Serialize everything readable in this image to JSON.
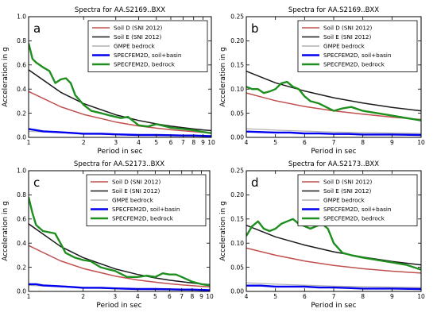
{
  "figure": {
    "colors": {
      "soil_d": "#c0504d",
      "soil_e": "#1a1a1a",
      "gmpe": "#b0b0b0",
      "soil_basin": "#0000ee",
      "bedrock": "#1e8f1e"
    }
  },
  "chart_data": [
    {
      "type": "line",
      "panel_letter": "a",
      "title": "Spectra for AA.S2169..BXX",
      "xlabel": "Period in sec",
      "ylabel": "Acceleration in g",
      "xscale": "log",
      "xlim": [
        1,
        10
      ],
      "ylim": [
        0,
        1.0
      ],
      "xticks": [
        1,
        2,
        3,
        4,
        5,
        6,
        7,
        8,
        9,
        10
      ],
      "xtick_labels": [
        "1",
        "2",
        "3",
        "4",
        "5",
        "6",
        "7",
        "8",
        "9",
        "10"
      ],
      "yticks": [
        0,
        0.2,
        0.4,
        0.6,
        0.8,
        1.0
      ],
      "ytick_labels": [
        "0.0",
        "0.2",
        "0.4",
        "0.6",
        "0.8",
        "1.0"
      ],
      "grid": false,
      "legend_position": "top-right",
      "series": [
        {
          "name": "Soil D (SNI 2012)",
          "color_key": "soil_d",
          "x": [
            1,
            1.5,
            2,
            3,
            4,
            5,
            6,
            7,
            8,
            9,
            10
          ],
          "y": [
            0.38,
            0.253,
            0.19,
            0.127,
            0.095,
            0.076,
            0.063,
            0.054,
            0.048,
            0.042,
            0.038
          ]
        },
        {
          "name": "Soil E (SNI 2012)",
          "color_key": "soil_e",
          "x": [
            1,
            1.5,
            2,
            3,
            4,
            5,
            6,
            7,
            8,
            9,
            10
          ],
          "y": [
            0.56,
            0.373,
            0.28,
            0.187,
            0.14,
            0.112,
            0.093,
            0.08,
            0.07,
            0.062,
            0.056
          ]
        },
        {
          "name": "GMPE bedrock",
          "color_key": "gmpe",
          "x": [
            1,
            1.5,
            2,
            3,
            4,
            5,
            6,
            7,
            8,
            9,
            10
          ],
          "y": [
            0.05,
            0.038,
            0.03,
            0.022,
            0.018,
            0.015,
            0.013,
            0.011,
            0.01,
            0.009,
            0.008
          ]
        },
        {
          "name": "SPECFEM2D, soil+basin",
          "color_key": "soil_basin",
          "x": [
            1,
            1.1,
            1.2,
            1.4,
            1.6,
            1.8,
            2,
            2.5,
            3,
            4,
            5,
            6,
            7,
            8,
            10
          ],
          "y": [
            0.07,
            0.06,
            0.05,
            0.045,
            0.04,
            0.035,
            0.03,
            0.03,
            0.025,
            0.02,
            0.02,
            0.018,
            0.015,
            0.015,
            0.01
          ]
        },
        {
          "name": "SPECFEM2D, bedrock",
          "color_key": "bedrock",
          "x": [
            1,
            1.05,
            1.1,
            1.2,
            1.3,
            1.4,
            1.5,
            1.6,
            1.7,
            1.8,
            2,
            2.2,
            2.5,
            2.8,
            3,
            3.2,
            3.5,
            4,
            4.5,
            5,
            5.5,
            6,
            7,
            8,
            9,
            10
          ],
          "y": [
            0.78,
            0.65,
            0.62,
            0.58,
            0.55,
            0.45,
            0.48,
            0.49,
            0.45,
            0.35,
            0.27,
            0.22,
            0.2,
            0.18,
            0.17,
            0.16,
            0.17,
            0.1,
            0.09,
            0.11,
            0.095,
            0.08,
            0.07,
            0.06,
            0.045,
            0.035
          ]
        }
      ]
    },
    {
      "type": "line",
      "panel_letter": "b",
      "title": "Spectra for AA.S2169..BXX",
      "xlabel": "Period in sec",
      "ylabel": "Acceleration in g",
      "xscale": "linear",
      "xlim": [
        4,
        10
      ],
      "ylim": [
        0,
        0.25
      ],
      "xticks": [
        4,
        5,
        6,
        7,
        8,
        9,
        10
      ],
      "xtick_labels": [
        "4",
        "5",
        "6",
        "7",
        "8",
        "9",
        "10"
      ],
      "yticks": [
        0,
        0.05,
        0.1,
        0.15,
        0.2,
        0.25
      ],
      "ytick_labels": [
        "0.00",
        "0.05",
        "0.10",
        "0.15",
        "0.20",
        "0.25"
      ],
      "grid": false,
      "legend_position": "top-right",
      "series": [
        {
          "name": "Soil D (SNI 2012)",
          "color_key": "soil_d",
          "x": [
            4,
            5,
            6,
            7,
            8,
            9,
            10
          ],
          "y": [
            0.092,
            0.076,
            0.064,
            0.055,
            0.048,
            0.042,
            0.037
          ]
        },
        {
          "name": "Soil E (SNI 2012)",
          "color_key": "soil_e",
          "x": [
            4,
            5,
            6,
            7,
            8,
            9,
            10
          ],
          "y": [
            0.137,
            0.113,
            0.096,
            0.082,
            0.071,
            0.062,
            0.055
          ]
        },
        {
          "name": "GMPE bedrock",
          "color_key": "gmpe",
          "x": [
            4,
            5,
            6,
            7,
            8,
            9,
            10
          ],
          "y": [
            0.018,
            0.015,
            0.013,
            0.011,
            0.01,
            0.009,
            0.008
          ]
        },
        {
          "name": "SPECFEM2D, soil+basin",
          "color_key": "soil_basin",
          "x": [
            4,
            4.5,
            5,
            5.5,
            6,
            6.5,
            7,
            7.5,
            8,
            9,
            10
          ],
          "y": [
            0.012,
            0.011,
            0.01,
            0.01,
            0.008,
            0.008,
            0.007,
            0.007,
            0.006,
            0.006,
            0.005
          ]
        },
        {
          "name": "SPECFEM2D, bedrock",
          "color_key": "bedrock",
          "x": [
            4,
            4.2,
            4.4,
            4.6,
            4.8,
            5,
            5.2,
            5.4,
            5.6,
            5.8,
            6,
            6.2,
            6.5,
            7,
            7.3,
            7.6,
            8,
            8.5,
            9,
            9.5,
            10
          ],
          "y": [
            0.105,
            0.1,
            0.1,
            0.092,
            0.095,
            0.1,
            0.112,
            0.115,
            0.105,
            0.1,
            0.085,
            0.075,
            0.07,
            0.055,
            0.06,
            0.063,
            0.055,
            0.05,
            0.045,
            0.04,
            0.035
          ]
        }
      ]
    },
    {
      "type": "line",
      "panel_letter": "c",
      "title": "Spectra for AA.S2173..BXX",
      "xlabel": "Period in sec",
      "ylabel": "Acceleration in g",
      "xscale": "log",
      "xlim": [
        1,
        10
      ],
      "ylim": [
        0,
        1.0
      ],
      "xticks": [
        1,
        2,
        3,
        4,
        5,
        6,
        7,
        8,
        9,
        10
      ],
      "xtick_labels": [
        "1",
        "2",
        "3",
        "4",
        "5",
        "6",
        "7",
        "8",
        "9",
        "10"
      ],
      "yticks": [
        0,
        0.2,
        0.4,
        0.6,
        0.8,
        1.0
      ],
      "ytick_labels": [
        "0.0",
        "0.2",
        "0.4",
        "0.6",
        "0.8",
        "1.0"
      ],
      "grid": false,
      "legend_position": "top-right",
      "series": [
        {
          "name": "Soil D (SNI 2012)",
          "color_key": "soil_d",
          "x": [
            1,
            1.5,
            2,
            3,
            4,
            5,
            6,
            7,
            8,
            9,
            10
          ],
          "y": [
            0.38,
            0.253,
            0.19,
            0.127,
            0.095,
            0.076,
            0.063,
            0.054,
            0.048,
            0.042,
            0.038
          ]
        },
        {
          "name": "Soil E (SNI 2012)",
          "color_key": "soil_e",
          "x": [
            1,
            1.5,
            2,
            3,
            4,
            5,
            6,
            7,
            8,
            9,
            10
          ],
          "y": [
            0.56,
            0.373,
            0.28,
            0.187,
            0.14,
            0.112,
            0.093,
            0.08,
            0.07,
            0.062,
            0.056
          ]
        },
        {
          "name": "GMPE bedrock",
          "color_key": "gmpe",
          "x": [
            1,
            1.5,
            2,
            3,
            4,
            5,
            6,
            7,
            8,
            9,
            10
          ],
          "y": [
            0.05,
            0.038,
            0.03,
            0.022,
            0.018,
            0.015,
            0.013,
            0.011,
            0.01,
            0.009,
            0.008
          ]
        },
        {
          "name": "SPECFEM2D, soil+basin",
          "color_key": "soil_basin",
          "x": [
            1,
            1.1,
            1.2,
            1.4,
            1.6,
            1.8,
            2,
            2.5,
            3,
            4,
            5,
            6,
            7,
            8,
            10
          ],
          "y": [
            0.06,
            0.06,
            0.05,
            0.045,
            0.04,
            0.035,
            0.03,
            0.03,
            0.025,
            0.02,
            0.02,
            0.018,
            0.015,
            0.015,
            0.01
          ]
        },
        {
          "name": "SPECFEM2D, bedrock",
          "color_key": "bedrock",
          "x": [
            1,
            1.05,
            1.1,
            1.2,
            1.3,
            1.4,
            1.5,
            1.6,
            1.8,
            2,
            2.2,
            2.5,
            2.8,
            3,
            3.5,
            4,
            4.5,
            5,
            5.5,
            6,
            6.5,
            7,
            8,
            9,
            10
          ],
          "y": [
            0.78,
            0.65,
            0.55,
            0.5,
            0.49,
            0.48,
            0.4,
            0.32,
            0.28,
            0.26,
            0.25,
            0.2,
            0.18,
            0.17,
            0.12,
            0.12,
            0.13,
            0.12,
            0.15,
            0.14,
            0.14,
            0.12,
            0.08,
            0.06,
            0.05
          ]
        }
      ]
    },
    {
      "type": "line",
      "panel_letter": "d",
      "title": "Spectra for AA.S2173..BXX",
      "xlabel": "Period in sec",
      "ylabel": "Acceleration in g",
      "xscale": "linear",
      "xlim": [
        4,
        10
      ],
      "ylim": [
        0,
        0.25
      ],
      "xticks": [
        4,
        5,
        6,
        7,
        8,
        9,
        10
      ],
      "xtick_labels": [
        "4",
        "5",
        "6",
        "7",
        "8",
        "9",
        "10"
      ],
      "yticks": [
        0,
        0.05,
        0.1,
        0.15,
        0.2,
        0.25
      ],
      "ytick_labels": [
        "0.00",
        "0.05",
        "0.10",
        "0.15",
        "0.20",
        "0.25"
      ],
      "grid": false,
      "legend_position": "top-right",
      "series": [
        {
          "name": "Soil D (SNI 2012)",
          "color_key": "soil_d",
          "x": [
            4,
            5,
            6,
            7,
            8,
            9,
            10
          ],
          "y": [
            0.09,
            0.075,
            0.063,
            0.054,
            0.047,
            0.042,
            0.038
          ]
        },
        {
          "name": "Soil E (SNI 2012)",
          "color_key": "soil_e",
          "x": [
            4,
            5,
            6,
            7,
            8,
            9,
            10
          ],
          "y": [
            0.137,
            0.113,
            0.096,
            0.082,
            0.071,
            0.062,
            0.055
          ]
        },
        {
          "name": "GMPE bedrock",
          "color_key": "gmpe",
          "x": [
            4,
            5,
            6,
            7,
            8,
            9,
            10
          ],
          "y": [
            0.018,
            0.015,
            0.013,
            0.011,
            0.01,
            0.009,
            0.008
          ]
        },
        {
          "name": "SPECFEM2D, soil+basin",
          "color_key": "soil_basin",
          "x": [
            4,
            4.5,
            5,
            5.5,
            6,
            6.5,
            7,
            7.5,
            8,
            9,
            10
          ],
          "y": [
            0.012,
            0.012,
            0.01,
            0.01,
            0.01,
            0.008,
            0.008,
            0.007,
            0.006,
            0.006,
            0.005
          ]
        },
        {
          "name": "SPECFEM2D, bedrock",
          "color_key": "bedrock",
          "x": [
            4,
            4.2,
            4.4,
            4.6,
            4.8,
            5,
            5.2,
            5.4,
            5.6,
            5.8,
            6,
            6.2,
            6.4,
            6.6,
            6.8,
            7,
            7.3,
            7.6,
            8,
            8.5,
            9,
            9.5,
            10
          ],
          "y": [
            0.115,
            0.135,
            0.145,
            0.13,
            0.125,
            0.13,
            0.14,
            0.145,
            0.15,
            0.14,
            0.135,
            0.13,
            0.135,
            0.14,
            0.13,
            0.1,
            0.08,
            0.075,
            0.07,
            0.065,
            0.06,
            0.055,
            0.045
          ]
        }
      ]
    }
  ]
}
